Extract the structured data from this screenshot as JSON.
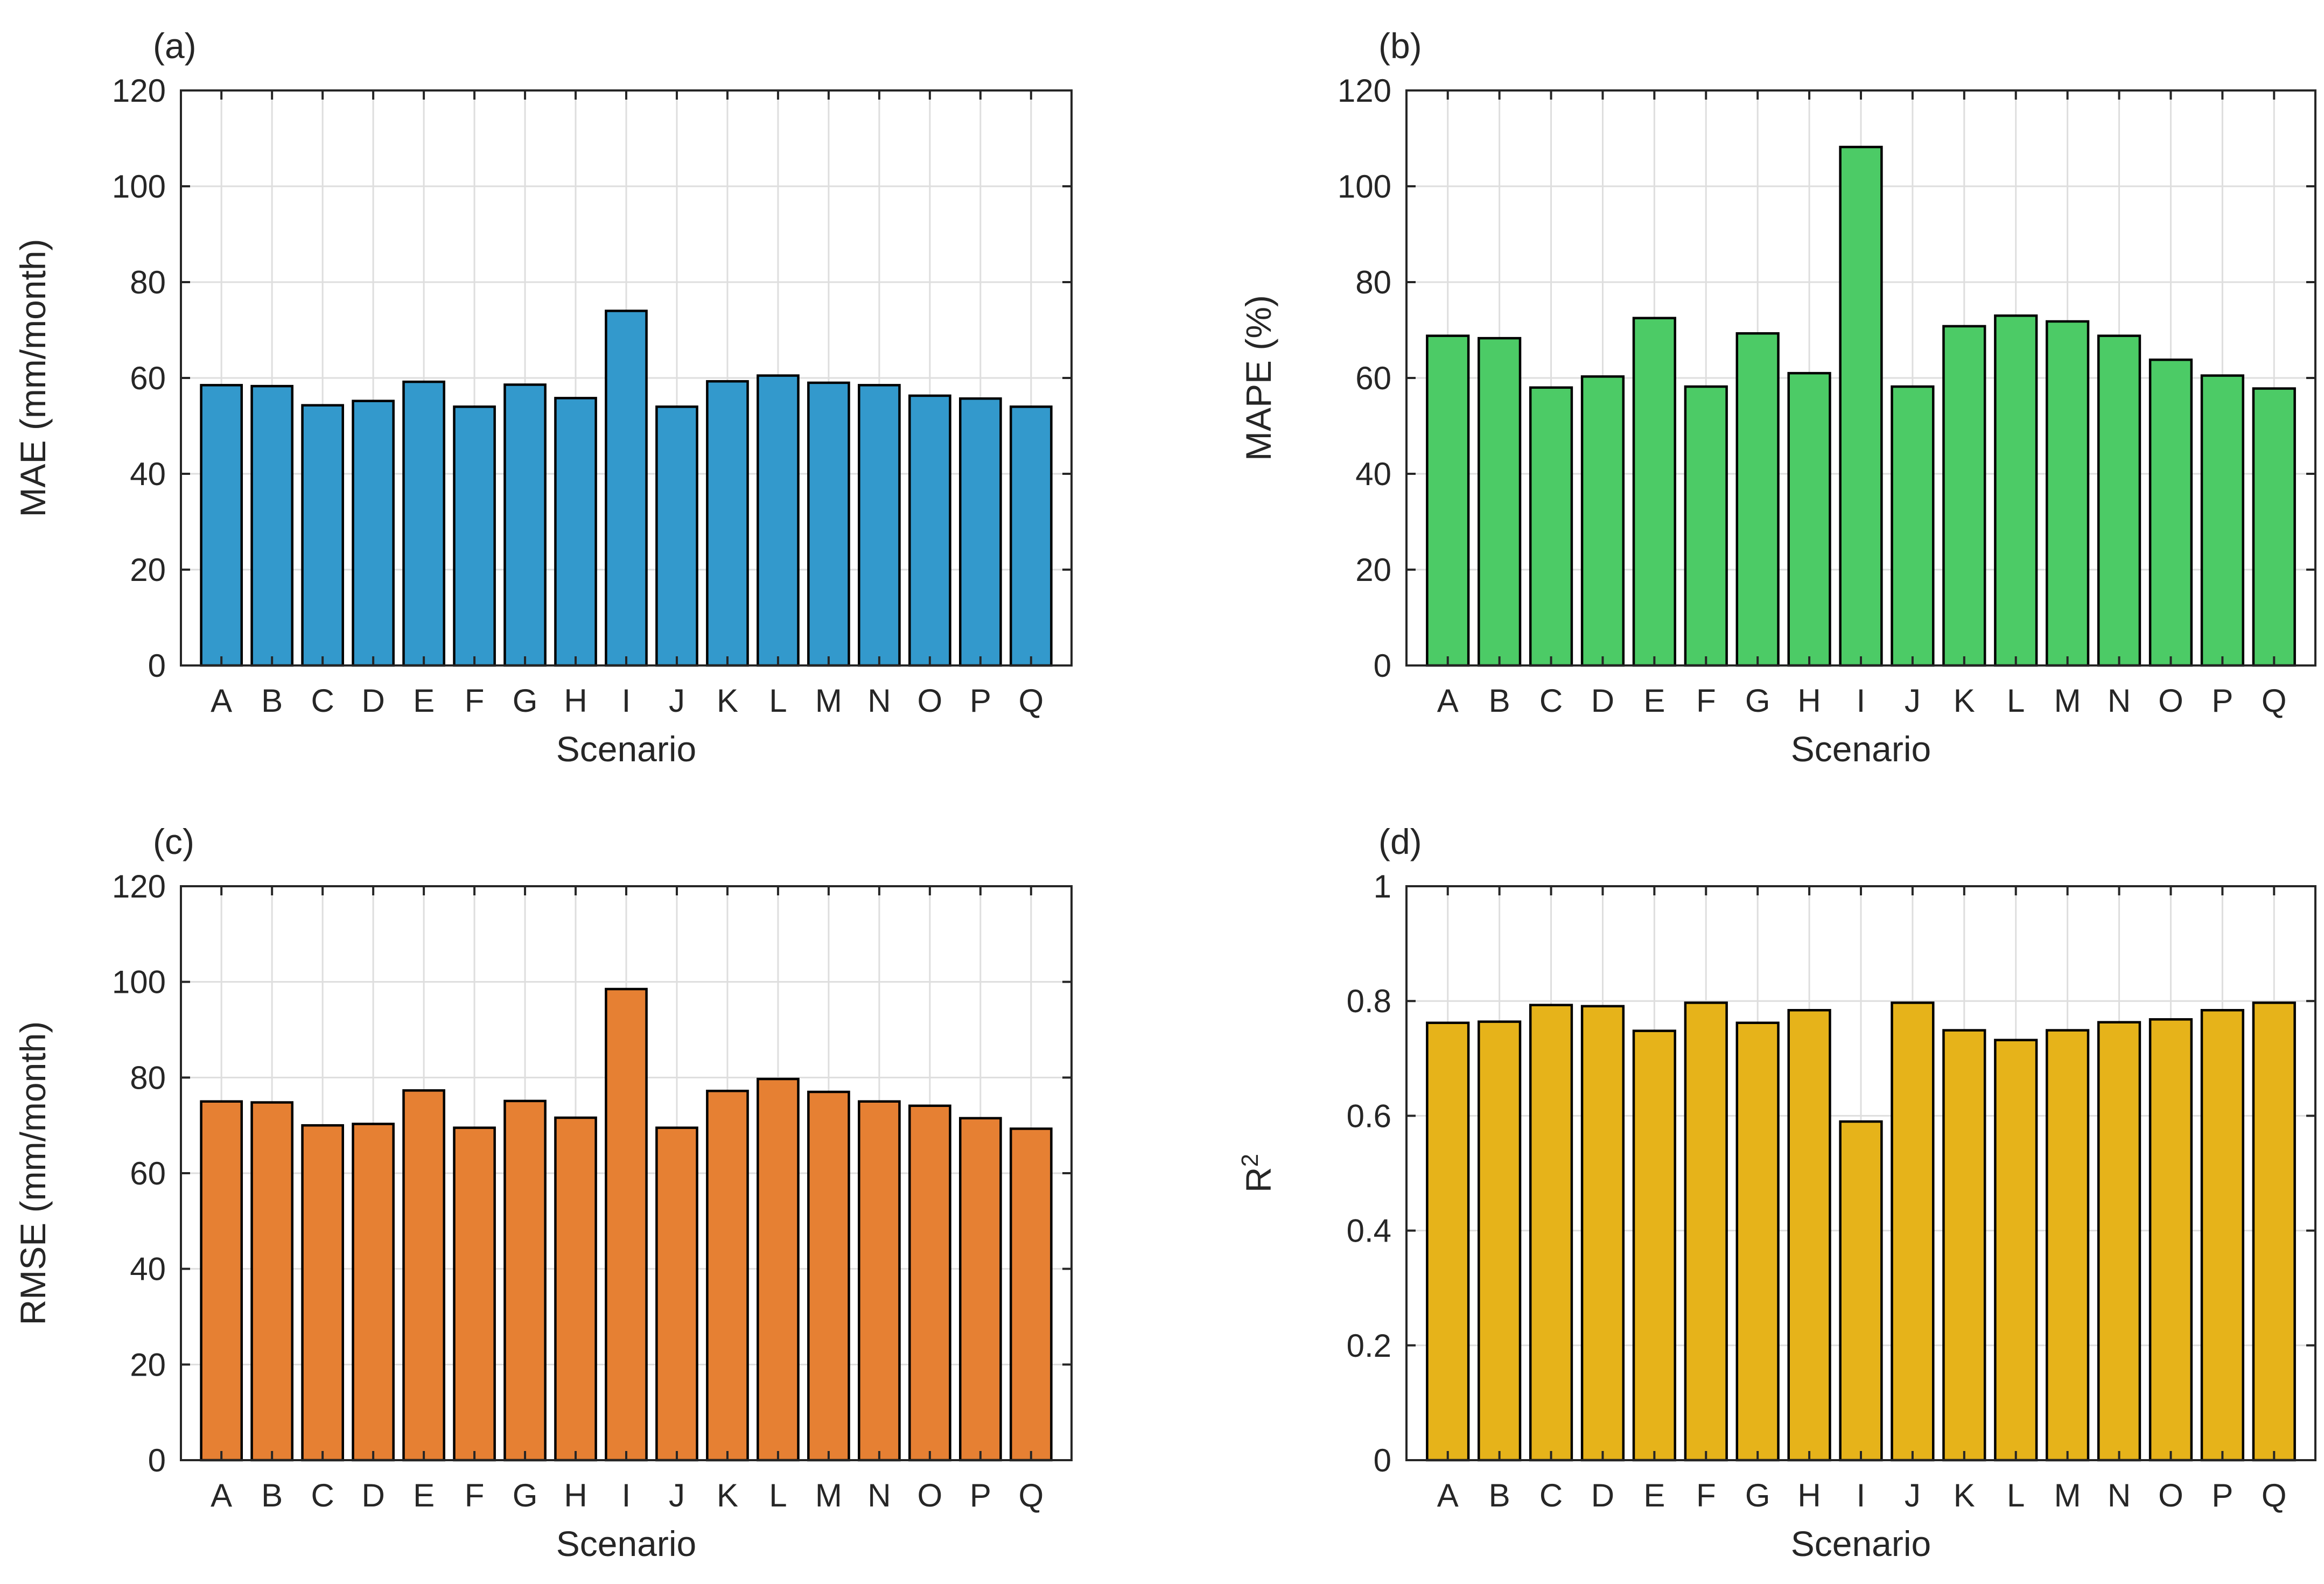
{
  "chart_data": [
    {
      "type": "bar",
      "panel_label": "(a)",
      "xlabel": "Scenario",
      "ylabel": "MAE (mm/month)",
      "ylim": [
        0,
        120
      ],
      "yticks": [
        "0",
        "20",
        "40",
        "60",
        "80",
        "100",
        "120"
      ],
      "grid": true,
      "color": "#3399CC",
      "categories": [
        "A",
        "B",
        "C",
        "D",
        "E",
        "F",
        "G",
        "H",
        "I",
        "J",
        "K",
        "L",
        "M",
        "N",
        "O",
        "P",
        "Q"
      ],
      "values": [
        58.5,
        58.3,
        54.3,
        55.2,
        59.2,
        54.0,
        58.6,
        55.8,
        74.0,
        54.0,
        59.3,
        60.5,
        59.0,
        58.5,
        56.3,
        55.7,
        54.0
      ]
    },
    {
      "type": "bar",
      "panel_label": "(b)",
      "xlabel": "Scenario",
      "ylabel": "MAPE (%)",
      "ylim": [
        0,
        120
      ],
      "yticks": [
        "0",
        "20",
        "40",
        "60",
        "80",
        "100",
        "120"
      ],
      "grid": true,
      "color": "#4CCB66",
      "categories": [
        "A",
        "B",
        "C",
        "D",
        "E",
        "F",
        "G",
        "H",
        "I",
        "J",
        "K",
        "L",
        "M",
        "N",
        "O",
        "P",
        "Q"
      ],
      "values": [
        68.8,
        68.3,
        58.0,
        60.3,
        72.5,
        58.2,
        69.3,
        61.0,
        108.2,
        58.2,
        70.8,
        73.0,
        71.8,
        68.8,
        63.8,
        60.5,
        57.8
      ]
    },
    {
      "type": "bar",
      "panel_label": "(c)",
      "xlabel": "Scenario",
      "ylabel": "RMSE (mm/month)",
      "ylim": [
        0,
        120
      ],
      "yticks": [
        "0",
        "20",
        "40",
        "60",
        "80",
        "100",
        "120"
      ],
      "grid": true,
      "color": "#E68033",
      "categories": [
        "A",
        "B",
        "C",
        "D",
        "E",
        "F",
        "G",
        "H",
        "I",
        "J",
        "K",
        "L",
        "M",
        "N",
        "O",
        "P",
        "Q"
      ],
      "values": [
        75.0,
        74.8,
        70.0,
        70.3,
        77.3,
        69.5,
        75.1,
        71.6,
        98.5,
        69.5,
        77.2,
        79.7,
        77.0,
        75.0,
        74.1,
        71.5,
        69.3
      ]
    },
    {
      "type": "bar",
      "panel_label": "(d)",
      "xlabel": "Scenario",
      "ylabel": "R",
      "ylabel_superscript": "2",
      "ylim": [
        0,
        1
      ],
      "yticks": [
        "0",
        "0.2",
        "0.4",
        "0.6",
        "0.8",
        "1"
      ],
      "grid": true,
      "color": "#E6B31A",
      "categories": [
        "A",
        "B",
        "C",
        "D",
        "E",
        "F",
        "G",
        "H",
        "I",
        "J",
        "K",
        "L",
        "M",
        "N",
        "O",
        "P",
        "Q"
      ],
      "values": [
        0.762,
        0.764,
        0.793,
        0.791,
        0.748,
        0.797,
        0.762,
        0.784,
        0.59,
        0.797,
        0.749,
        0.732,
        0.749,
        0.763,
        0.768,
        0.784,
        0.797
      ]
    }
  ]
}
